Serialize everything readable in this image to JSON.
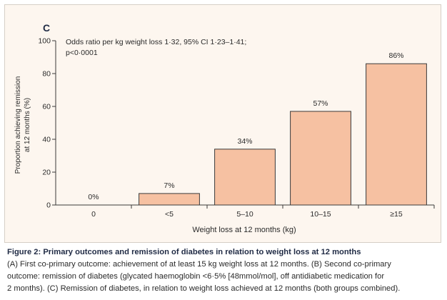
{
  "chart_data": {
    "type": "bar",
    "panel_label": "C",
    "annotation": [
      "Odds ratio per kg weight loss 1·32, 95% CI 1·23–1·41;",
      "p<0·0001"
    ],
    "categories": [
      "0",
      "<5",
      "5–10",
      "10–15",
      "≥15"
    ],
    "values": [
      0,
      7,
      34,
      57,
      86
    ],
    "data_labels": [
      "0%",
      "7%",
      "34%",
      "57%",
      "86%"
    ],
    "xlabel": "Weight loss at 12 months (kg)",
    "ylabel": [
      "Proportion achieving remission",
      "at 12 months (%)"
    ],
    "ylim": [
      0,
      100
    ],
    "yticks": [
      0,
      20,
      40,
      60,
      80,
      100
    ],
    "ytick_labels": [
      "0",
      "20",
      "40",
      "60",
      "80",
      "100"
    ],
    "grid": false,
    "bar_color": "#f6c1a2",
    "bar_edge_color": "#3a3a3a"
  },
  "caption": {
    "heading": "Figure 2: Primary outcomes and remission of diabetes in relation to weight loss at 12 months",
    "lines": [
      "(A) First co-primary outcome: achievement of at least 15 kg weight loss at 12 months. (B) Second co-primary",
      "outcome: remission of diabetes (glycated haemoglobin <6·5% [48mmol/mol], off antidiabetic medication for",
      "2 months). (C) Remission of diabetes, in relation to weight loss achieved at 12 months (both groups combined)."
    ]
  }
}
